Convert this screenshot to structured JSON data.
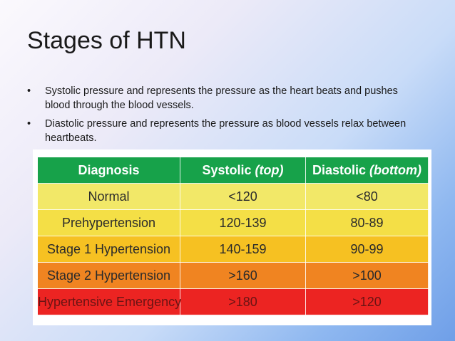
{
  "slide": {
    "title": "Stages of HTN"
  },
  "bullets": [
    {
      "marker": "•",
      "text": "Systolic pressure and represents the pressure as the heart beats and pushes blood through the blood vessels."
    },
    {
      "marker": "•",
      "text": "Diastolic pressure and represents the pressure as blood vessels relax between heartbeats."
    }
  ],
  "table": {
    "headers": {
      "diagnosis": "Diagnosis",
      "systolic": "Systolic",
      "systolic_sub": "(top)",
      "diastolic": "Diastolic",
      "diastolic_sub": "(bottom)"
    },
    "rows": [
      {
        "diagnosis": "Normal",
        "systolic": "<120",
        "diastolic": "<80"
      },
      {
        "diagnosis": "Prehypertension",
        "systolic": "120-139",
        "diastolic": "80-89"
      },
      {
        "diagnosis": "Stage 1 Hypertension",
        "systolic": "140-159",
        "diastolic": "90-99"
      },
      {
        "diagnosis": "Stage 2 Hypertension",
        "systolic": ">160",
        "diastolic": ">100"
      },
      {
        "diagnosis": "Hypertensive Emergency",
        "systolic": ">180",
        "diastolic": ">120"
      }
    ],
    "colors": {
      "header": "#17a24a",
      "normal": "#f2e868",
      "prehypertension": "#f4df46",
      "stage1": "#f6c122",
      "stage2": "#f08421",
      "emergency": "#ec2422"
    }
  }
}
